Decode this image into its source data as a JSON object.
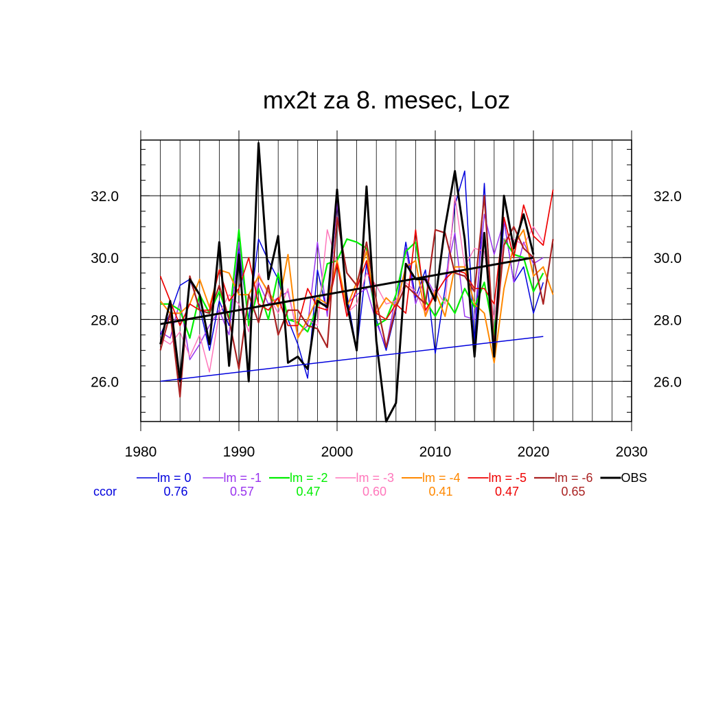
{
  "chart_data": {
    "type": "line",
    "title": "mx2t za 8. mesec, Loz",
    "xlabel": "",
    "ylabel": "",
    "xlim": [
      1980,
      2030
    ],
    "ylim": [
      24.7,
      33.8
    ],
    "x_ticks": [
      "1980",
      "1990",
      "2000",
      "2010",
      "2020",
      "2030"
    ],
    "y_ticks": [
      "26.0",
      "28.0",
      "30.0",
      "32.0"
    ],
    "grid": true,
    "legend_position": "bottom",
    "ccor_label": "ccor",
    "series": [
      {
        "name": "lm = 0",
        "ccor": "0.76",
        "color": "#0000dd",
        "width": 1.5,
        "x": [
          1982,
          1983,
          1984,
          1985,
          1986,
          1987,
          1988,
          1989,
          1990,
          1991,
          1992,
          1993,
          1994,
          1995,
          1996,
          1997,
          1998,
          1999,
          2000,
          2001,
          2002,
          2003,
          2004,
          2005,
          2006,
          2007,
          2008,
          2009,
          2010,
          2011,
          2012,
          2013,
          2014,
          2015,
          2016,
          2017,
          2018,
          2019,
          2020,
          2021
        ],
        "y": [
          27.5,
          28.2,
          29.1,
          29.3,
          28.4,
          27.0,
          28.6,
          27.8,
          30.2,
          28.0,
          30.6,
          29.9,
          29.3,
          28.0,
          27.2,
          26.1,
          29.6,
          28.2,
          31.8,
          28.8,
          27.0,
          29.8,
          28.0,
          27.0,
          28.3,
          30.5,
          28.7,
          29.6,
          26.9,
          29.0,
          31.7,
          32.8,
          27.2,
          32.4,
          26.8,
          31.2,
          29.2,
          29.7,
          28.2,
          29.2
        ]
      },
      {
        "name": "lm = -1",
        "ccor": "0.57",
        "color": "#9933ee",
        "width": 1.5,
        "x": [
          1982,
          1983,
          1984,
          1985,
          1986,
          1987,
          1988,
          1989,
          1990,
          1991,
          1992,
          1993,
          1994,
          1995,
          1996,
          1997,
          1998,
          1999,
          2000,
          2001,
          2002,
          2003,
          2004,
          2005,
          2006,
          2007,
          2008,
          2009,
          2010,
          2011,
          2012,
          2013,
          2014,
          2015,
          2016,
          2017,
          2018,
          2019,
          2020,
          2021
        ],
        "y": [
          27.6,
          27.4,
          28.6,
          26.7,
          27.2,
          27.8,
          28.3,
          27.5,
          30.5,
          27.8,
          29.2,
          28.5,
          28.7,
          28.9,
          27.5,
          27.8,
          30.5,
          28.1,
          31.8,
          28.5,
          28.8,
          29.0,
          27.9,
          27.1,
          28.8,
          30.3,
          28.5,
          29.4,
          28.8,
          29.3,
          30.8,
          28.1,
          28.0,
          31.4,
          30.1,
          31.2,
          29.2,
          30.5,
          29.8,
          30.0
        ]
      },
      {
        "name": "lm = -2",
        "ccor": "0.47",
        "color": "#00ee00",
        "width": 2.2,
        "x": [
          1982,
          1983,
          1984,
          1985,
          1986,
          1987,
          1988,
          1989,
          1990,
          1991,
          1992,
          1993,
          1994,
          1995,
          1996,
          1997,
          1998,
          1999,
          2000,
          2001,
          2002,
          2003,
          2004,
          2005,
          2006,
          2007,
          2008,
          2009,
          2010,
          2011,
          2012,
          2013,
          2014,
          2015,
          2016,
          2017,
          2018,
          2019,
          2020,
          2021
        ],
        "y": [
          28.5,
          28.5,
          28.3,
          27.4,
          28.8,
          28.2,
          28.9,
          28.0,
          30.9,
          27.8,
          29.0,
          28.0,
          29.5,
          28.0,
          27.9,
          27.6,
          28.4,
          29.8,
          29.9,
          30.6,
          30.5,
          30.3,
          27.8,
          28.0,
          28.8,
          30.2,
          30.5,
          28.6,
          28.1,
          28.7,
          28.2,
          29.0,
          28.4,
          29.2,
          27.5,
          30.6,
          30.1,
          30.0,
          28.9,
          29.5
        ]
      },
      {
        "name": "lm = -3",
        "ccor": "0.60",
        "color": "#ff77bb",
        "width": 1.5,
        "x": [
          1982,
          1983,
          1984,
          1985,
          1986,
          1987,
          1988,
          1989,
          1990,
          1991,
          1992,
          1993,
          1994,
          1995,
          1996,
          1997,
          1998,
          1999,
          2000,
          2001,
          2002,
          2003,
          2004,
          2005,
          2006,
          2007,
          2008,
          2009,
          2010,
          2011,
          2012,
          2013,
          2014,
          2015,
          2016,
          2017,
          2018,
          2019,
          2020,
          2021
        ],
        "y": [
          27.4,
          27.2,
          27.6,
          26.8,
          27.5,
          26.3,
          28.2,
          28.8,
          28.5,
          27.6,
          29.5,
          28.8,
          28.2,
          29.0,
          27.4,
          28.0,
          27.8,
          30.9,
          29.8,
          28.2,
          28.5,
          29.5,
          29.1,
          28.5,
          28.6,
          29.2,
          28.9,
          28.2,
          29.0,
          28.5,
          32.0,
          29.7,
          30.3,
          30.2,
          28.0,
          30.6,
          30.6,
          30.4,
          31.0,
          30.5
        ]
      },
      {
        "name": "lm = -4",
        "ccor": "0.41",
        "color": "#ff8800",
        "width": 2.0,
        "x": [
          1982,
          1983,
          1984,
          1985,
          1986,
          1987,
          1988,
          1989,
          1990,
          1991,
          1992,
          1993,
          1994,
          1995,
          1996,
          1997,
          1998,
          1999,
          2000,
          2001,
          2002,
          2003,
          2004,
          2005,
          2006,
          2007,
          2008,
          2009,
          2010,
          2011,
          2012,
          2013,
          2014,
          2015,
          2016,
          2017,
          2018,
          2019,
          2020,
          2021,
          2022
        ],
        "y": [
          28.6,
          28.2,
          28.2,
          28.5,
          29.3,
          28.4,
          29.6,
          29.5,
          28.8,
          28.8,
          29.4,
          28.9,
          28.4,
          30.1,
          27.4,
          28.0,
          28.7,
          28.5,
          29.9,
          28.4,
          29.2,
          30.2,
          28.2,
          28.7,
          28.4,
          29.7,
          29.9,
          28.1,
          28.9,
          28.1,
          29.7,
          29.7,
          28.5,
          28.2,
          26.6,
          29.0,
          30.4,
          30.9,
          29.4,
          29.7,
          28.8
        ]
      },
      {
        "name": "lm = -5",
        "ccor": "0.47",
        "color": "#ee0000",
        "width": 1.7,
        "x": [
          1982,
          1983,
          1984,
          1985,
          1986,
          1987,
          1988,
          1989,
          1990,
          1991,
          1992,
          1993,
          1994,
          1995,
          1996,
          1997,
          1998,
          1999,
          2000,
          2001,
          2002,
          2003,
          2004,
          2005,
          2006,
          2007,
          2008,
          2009,
          2010,
          2011,
          2012,
          2013,
          2014,
          2015,
          2016,
          2017,
          2018,
          2019,
          2020,
          2021,
          2022
        ],
        "y": [
          29.4,
          28.6,
          27.8,
          28.5,
          28.3,
          28.3,
          29.6,
          28.6,
          29.0,
          30.0,
          28.5,
          28.3,
          28.7,
          27.8,
          27.8,
          29.0,
          28.4,
          28.3,
          29.8,
          28.1,
          29.0,
          29.9,
          28.2,
          28.0,
          28.5,
          28.2,
          30.9,
          28.3,
          28.8,
          29.3,
          29.6,
          29.5,
          29.0,
          29.0,
          28.5,
          31.3,
          30.0,
          31.7,
          30.7,
          30.4,
          32.2
        ]
      },
      {
        "name": "lm = -6",
        "ccor": "0.65",
        "color": "#aa2222",
        "width": 2.2,
        "x": [
          1982,
          1983,
          1984,
          1985,
          1986,
          1987,
          1988,
          1989,
          1990,
          1991,
          1992,
          1993,
          1994,
          1995,
          1996,
          1997,
          1998,
          1999,
          2000,
          2001,
          2002,
          2003,
          2004,
          2005,
          2006,
          2007,
          2008,
          2009,
          2010,
          2011,
          2012,
          2013,
          2014,
          2015,
          2016,
          2017,
          2018,
          2019,
          2020,
          2021,
          2022
        ],
        "y": [
          27.0,
          28.2,
          25.5,
          29.4,
          28.3,
          28.2,
          29.1,
          28.0,
          26.4,
          28.8,
          27.9,
          29.1,
          27.5,
          28.3,
          28.3,
          27.8,
          27.7,
          27.1,
          31.3,
          29.5,
          29.1,
          30.5,
          28.6,
          27.1,
          28.4,
          29.1,
          28.8,
          28.5,
          30.9,
          30.8,
          29.5,
          29.4,
          28.9,
          32.0,
          27.1,
          30.4,
          31.0,
          30.3,
          30.0,
          28.5,
          30.6
        ]
      },
      {
        "name": "OBS",
        "ccor": "",
        "color": "#000000",
        "width": 3.0,
        "x": [
          1982,
          1983,
          1984,
          1985,
          1986,
          1987,
          1988,
          1989,
          1990,
          1991,
          1992,
          1993,
          1994,
          1995,
          1996,
          1997,
          1998,
          1999,
          2000,
          2001,
          2002,
          2003,
          2004,
          2005,
          2006,
          2007,
          2008,
          2009,
          2010,
          2011,
          2012,
          2013,
          2014,
          2015,
          2016,
          2017,
          2018,
          2019,
          2020
        ],
        "y": [
          27.2,
          28.6,
          26.0,
          29.3,
          28.8,
          27.2,
          30.5,
          26.5,
          30.1,
          26.0,
          33.7,
          29.3,
          30.7,
          26.6,
          26.8,
          26.4,
          28.6,
          28.4,
          32.2,
          28.5,
          27.0,
          32.3,
          27.3,
          24.7,
          25.3,
          29.8,
          29.3,
          29.3,
          28.6,
          31.0,
          32.8,
          30.6,
          26.8,
          30.8,
          26.8,
          32.0,
          30.3,
          31.4,
          30.1
        ]
      }
    ],
    "trend_lines": [
      {
        "of": "lm = 0",
        "color": "#0000dd",
        "width": 1.5,
        "x": [
          1982,
          2021
        ],
        "y": [
          26.0,
          27.45
        ]
      },
      {
        "of": "OBS",
        "color": "#000000",
        "width": 3.0,
        "x": [
          1982,
          2020
        ],
        "y": [
          27.85,
          30.0
        ]
      }
    ]
  }
}
